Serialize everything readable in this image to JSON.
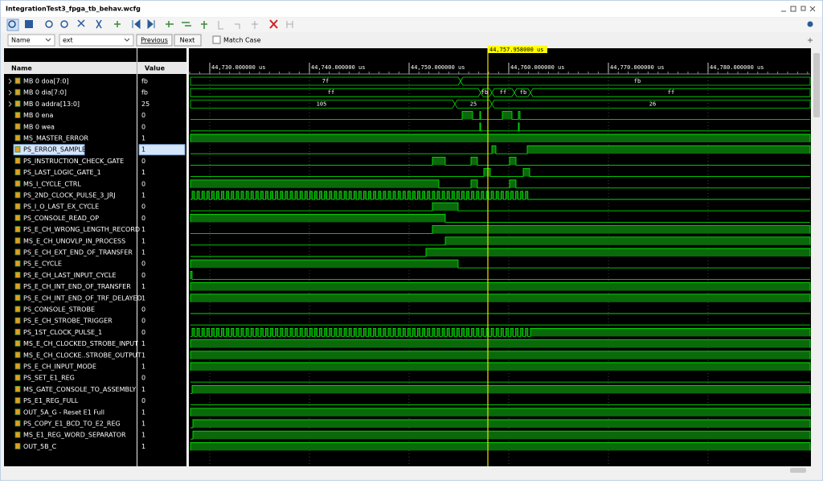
{
  "window": {
    "title": "IntegrationTest3_fpga_tb_behav.wcfg"
  },
  "search": {
    "field": "Name",
    "text": "ext",
    "previous": "Previous",
    "next": "Next",
    "match_case": "Match Case"
  },
  "columns": {
    "name": "Name",
    "value": "Value"
  },
  "timeline": {
    "cursor": "44,757.958000 us",
    "labels": [
      "44,730.000000 us",
      "44,740.000000 us",
      "44,750.000000 us",
      "44,760.000000 us",
      "44,770.000000 us",
      "44,780.000000 us"
    ]
  },
  "signals": [
    {
      "name": "MB 0 doa[7:0]",
      "value": "fb",
      "bus_labels": [
        "7f",
        "fb"
      ]
    },
    {
      "name": "MB 0 dia[7:0]",
      "value": "fb",
      "bus_labels": [
        "ff",
        "fb",
        "ff",
        "fb",
        "ff"
      ]
    },
    {
      "name": "MB 0 addra[13:0]",
      "value": "25",
      "bus_labels": [
        "105",
        "25",
        "26"
      ]
    },
    {
      "name": "MB 0 ena",
      "value": "0"
    },
    {
      "name": "MB 0 wea",
      "value": "0"
    },
    {
      "name": "MS_MASTER_ERROR",
      "value": "1"
    },
    {
      "name": "PS_ERROR_SAMPLE",
      "value": "1"
    },
    {
      "name": "PS_INSTRUCTION_CHECK_GATE",
      "value": "0"
    },
    {
      "name": "PS_LAST_LOGIC_GATE_1",
      "value": "1"
    },
    {
      "name": "MS_I_CYCLE_CTRL",
      "value": "0"
    },
    {
      "name": "PS_2ND_CLOCK_PULSE_3_JRJ",
      "value": "1"
    },
    {
      "name": "PS_I_O_LAST_EX_CYCLE",
      "value": "0"
    },
    {
      "name": "PS_CONSOLE_READ_OP",
      "value": "0"
    },
    {
      "name": "PS_E_CH_WRONG_LENGTH_RECORD",
      "value": "1"
    },
    {
      "name": "MS_E_CH_UNOVLP_IN_PROCESS",
      "value": "1"
    },
    {
      "name": "PS_E_CH_EXT_END_OF_TRANSFER",
      "value": "1"
    },
    {
      "name": "PS_E_CYCLE",
      "value": "0"
    },
    {
      "name": "PS_E_CH_LAST_INPUT_CYCLE",
      "value": "0"
    },
    {
      "name": "PS_E_CH_INT_END_OF_TRANSFER",
      "value": "1"
    },
    {
      "name": "PS_E_CH_INT_END_OF_TRF_DELAYED",
      "value": "1"
    },
    {
      "name": "PS_CONSOLE_STROBE",
      "value": "0"
    },
    {
      "name": "PS_E_CH_STROBE_TRIGGER",
      "value": "0"
    },
    {
      "name": "PS_1ST_CLOCK_PULSE_1",
      "value": "0"
    },
    {
      "name": "MS_E_CH_CLOCKED_STROBE_INPUT",
      "value": "1"
    },
    {
      "name": "MS_E_CH_CLOCKE..STROBE_OUTPUT",
      "value": "1"
    },
    {
      "name": "PS_E_CH_INPUT_MODE",
      "value": "1"
    },
    {
      "name": "PS_SET_E1_REG",
      "value": "0"
    },
    {
      "name": "MS_GATE_CONSOLE_TO_ASSEMBLY",
      "value": "1"
    },
    {
      "name": "PS_E1_REG_FULL",
      "value": "0"
    },
    {
      "name": "OUT_5A_G - Reset E1 Full",
      "value": "1"
    },
    {
      "name": "PS_COPY_E1_BCD_TO_E2_REG",
      "value": "1"
    },
    {
      "name": "MS_E1_REG_WORD_SEPARATOR",
      "value": "1"
    },
    {
      "name": "OUT_5B_C",
      "value": "1"
    }
  ]
}
